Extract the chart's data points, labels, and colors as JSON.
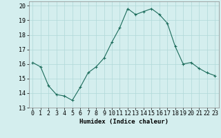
{
  "x": [
    0,
    1,
    2,
    3,
    4,
    5,
    6,
    7,
    8,
    9,
    10,
    11,
    12,
    13,
    14,
    15,
    16,
    17,
    18,
    19,
    20,
    21,
    22,
    23
  ],
  "y": [
    16.1,
    15.8,
    14.5,
    13.9,
    13.8,
    13.5,
    14.4,
    15.4,
    15.8,
    16.4,
    17.5,
    18.5,
    19.8,
    19.4,
    19.6,
    19.8,
    19.4,
    18.8,
    17.2,
    16.0,
    16.1,
    15.7,
    15.4,
    15.2
  ],
  "line_color": "#1a6b5a",
  "marker": "+",
  "marker_color": "#1a6b5a",
  "bg_color": "#d4eeee",
  "grid_color": "#b0d8d8",
  "xlabel": "Humidex (Indice chaleur)",
  "xlim": [
    -0.5,
    23.5
  ],
  "ylim": [
    13,
    20.3
  ],
  "yticks": [
    13,
    14,
    15,
    16,
    17,
    18,
    19,
    20
  ],
  "xticks": [
    0,
    1,
    2,
    3,
    4,
    5,
    6,
    7,
    8,
    9,
    10,
    11,
    12,
    13,
    14,
    15,
    16,
    17,
    18,
    19,
    20,
    21,
    22,
    23
  ],
  "xlabel_fontsize": 6.5,
  "tick_fontsize": 6.0,
  "linewidth": 0.8,
  "markersize": 3.5
}
